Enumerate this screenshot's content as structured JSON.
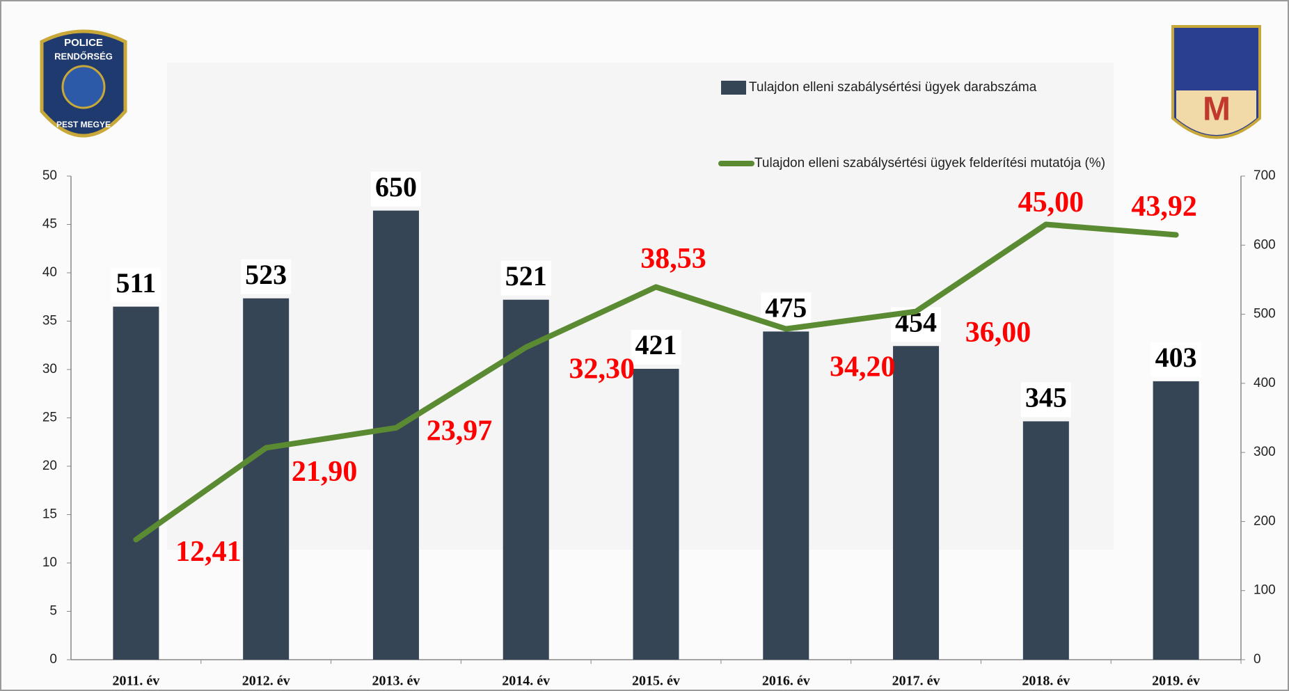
{
  "chart_data": {
    "type": "combo",
    "categories": [
      "2011. év",
      "2012. év",
      "2013. év",
      "2014. év",
      "2015. év",
      "2016. év",
      "2017. év",
      "2018. év",
      "2019. év"
    ],
    "series": [
      {
        "name": "Tulajdon elleni szabálysértési ügyek darabszáma",
        "type": "bar",
        "axis": "y2",
        "color": "#364556",
        "values": [
          511,
          523,
          650,
          521,
          421,
          475,
          454,
          345,
          403
        ]
      },
      {
        "name": "Tulajdon elleni szabálysértési ügyek felderítési mutatója (%)",
        "type": "line",
        "axis": "y",
        "color": "#5a8a32",
        "values": [
          12.41,
          21.9,
          23.97,
          32.3,
          38.53,
          34.2,
          36.0,
          45.0,
          43.92
        ],
        "value_labels": [
          "12,41",
          "21,90",
          "23,97",
          "32,30",
          "38,53",
          "34,20",
          "36,00",
          "45,00",
          "43,92"
        ]
      }
    ],
    "ylim": [
      0,
      50
    ],
    "yticks": [
      0,
      5,
      10,
      15,
      20,
      25,
      30,
      35,
      40,
      45,
      50
    ],
    "y2lim": [
      0,
      700
    ],
    "y2ticks": [
      0,
      100,
      200,
      300,
      400,
      500,
      600,
      700
    ]
  },
  "logos": {
    "left": [
      "POLICE",
      "RENDŐRSÉG",
      "PEST MEGYE"
    ],
    "right": "M"
  }
}
